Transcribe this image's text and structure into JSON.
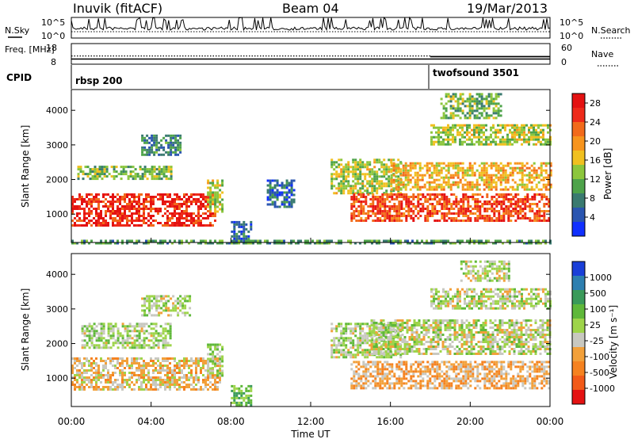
{
  "header": {
    "station": "Inuvik (fitACF)",
    "beam": "Beam 04",
    "date": "19/Mar/2013"
  },
  "chart_data": [
    {
      "type": "line",
      "panel": "noise",
      "ylabel_left": "N.Sky",
      "ylabel_right": "N.Search",
      "left_ticks": [
        "10^5",
        "10^0"
      ],
      "right_ticks": [
        "10^5",
        "10^0"
      ],
      "yscale": "log",
      "series": [
        {
          "name": "N.Sky",
          "style": "solid"
        },
        {
          "name": "N.Search",
          "style": "dotted"
        }
      ]
    },
    {
      "type": "line",
      "panel": "frequency",
      "ylabel_left": "Freq. [MHz]",
      "ylabel_right": "Nave",
      "left_ticks": [
        "18",
        "8"
      ],
      "right_ticks": [
        "60",
        "0"
      ],
      "ylim_left": [
        8,
        18
      ],
      "ylim_right": [
        0,
        60
      ],
      "series": [
        {
          "name": "Freq. [MHz]",
          "style": "solid",
          "segments": [
            {
              "x": [
                0.0,
                24.0
              ],
              "y": [
                10.5,
                10.5
              ]
            }
          ]
        },
        {
          "name": "Nave",
          "style": "dotted",
          "segments": [
            {
              "x": [
                0.0,
                18.0
              ],
              "y": [
                24,
                24
              ]
            },
            {
              "x": [
                18.0,
                24.0
              ],
              "y": [
                20,
                24
              ]
            }
          ]
        }
      ]
    },
    {
      "type": "table",
      "panel": "cpid",
      "label": "CPID",
      "entries": [
        {
          "name": "rbsp 200",
          "start_hour": 0.0
        },
        {
          "name": "twofsound 3501",
          "start_hour": 18.0
        }
      ]
    },
    {
      "type": "heatmap",
      "panel": "power",
      "ylabel": "Slant Range [km]",
      "yticks": [
        1000,
        2000,
        3000,
        4000
      ],
      "ylim": [
        180,
        4600
      ],
      "colorbar_label": "Power [dB]",
      "colorbar_ticks": [
        4,
        8,
        12,
        16,
        20,
        24,
        28
      ],
      "colorbar_range": [
        0,
        30
      ],
      "colorscale": [
        "#1030ff",
        "#2a55b0",
        "#3a7a70",
        "#4ea34a",
        "#8cc63c",
        "#f0c020",
        "#f7941d",
        "#f26a1b",
        "#ee2a1a",
        "#e41212"
      ],
      "bands": [
        {
          "t0": 0.0,
          "t1": 7.2,
          "r0": 700,
          "r1": 1600,
          "dB": 26
        },
        {
          "t0": 0.3,
          "t1": 5.0,
          "r0": 2000,
          "r1": 2400,
          "dB": 12
        },
        {
          "t0": 3.5,
          "t1": 5.5,
          "r0": 2700,
          "r1": 3300,
          "dB": 8
        },
        {
          "t0": 6.8,
          "t1": 7.6,
          "r0": 1100,
          "r1": 2000,
          "dB": 14
        },
        {
          "t0": 8.0,
          "t1": 9.0,
          "r0": 250,
          "r1": 800,
          "dB": 6
        },
        {
          "t0": 9.8,
          "t1": 11.2,
          "r0": 1200,
          "r1": 2000,
          "dB": 6
        },
        {
          "t0": 13.0,
          "t1": 16.5,
          "r0": 1600,
          "r1": 2600,
          "dB": 14
        },
        {
          "t0": 14.0,
          "t1": 24.0,
          "r0": 800,
          "r1": 1600,
          "dB": 24
        },
        {
          "t0": 16.0,
          "t1": 24.0,
          "r0": 1700,
          "r1": 2500,
          "dB": 18
        },
        {
          "t0": 18.0,
          "t1": 24.0,
          "r0": 3000,
          "r1": 3600,
          "dB": 14
        },
        {
          "t0": 18.5,
          "t1": 21.5,
          "r0": 3800,
          "r1": 4500,
          "dB": 12
        },
        {
          "t0": 0.0,
          "t1": 24.0,
          "r0": 180,
          "r1": 260,
          "dB": 10
        }
      ]
    },
    {
      "type": "heatmap",
      "panel": "velocity",
      "ylabel": "Slant Range [km]",
      "yticks": [
        1000,
        2000,
        3000,
        4000
      ],
      "ylim": [
        180,
        4600
      ],
      "colorbar_label": "Velocity [m s⁻¹]",
      "colorbar_ticks": [
        "1000",
        "500",
        "100",
        "25",
        "-25",
        "-100",
        "-500",
        "-1000"
      ],
      "colorbar_range": [
        -1000,
        1000
      ],
      "colorscale": [
        "#1a3fd8",
        "#2d7fb0",
        "#3a9a5a",
        "#5fb83a",
        "#9ed44a",
        "#c8c8c0",
        "#f2a03a",
        "#f58220",
        "#f25a18",
        "#e41212"
      ],
      "bands": [
        {
          "t0": 0.0,
          "t1": 7.5,
          "r0": 700,
          "r1": 1600,
          "v": -200
        },
        {
          "t0": 0.5,
          "t1": 5.0,
          "r0": 1900,
          "r1": 2600,
          "v": 60
        },
        {
          "t0": 3.5,
          "t1": 6.0,
          "r0": 2800,
          "r1": 3400,
          "v": 0
        },
        {
          "t0": 6.8,
          "t1": 7.6,
          "r0": 1100,
          "r1": 2000,
          "v": 60
        },
        {
          "t0": 8.0,
          "t1": 9.0,
          "r0": 250,
          "r1": 800,
          "v": 300
        },
        {
          "t0": 13.0,
          "t1": 16.5,
          "r0": 1600,
          "r1": 2600,
          "v": 60
        },
        {
          "t0": 14.0,
          "t1": 24.0,
          "r0": 700,
          "r1": 1500,
          "v": -300
        },
        {
          "t0": 15.0,
          "t1": 24.0,
          "r0": 1700,
          "r1": 2700,
          "v": 0
        },
        {
          "t0": 18.0,
          "t1": 24.0,
          "r0": 3000,
          "r1": 3600,
          "v": 0
        },
        {
          "t0": 19.5,
          "t1": 22.0,
          "r0": 3800,
          "r1": 4400,
          "v": 0
        }
      ]
    }
  ],
  "x_axis": {
    "label": "Time UT",
    "ticks": [
      "00:00",
      "04:00",
      "08:00",
      "12:00",
      "16:00",
      "20:00",
      "00:00"
    ],
    "range_hours": [
      0,
      24
    ]
  }
}
